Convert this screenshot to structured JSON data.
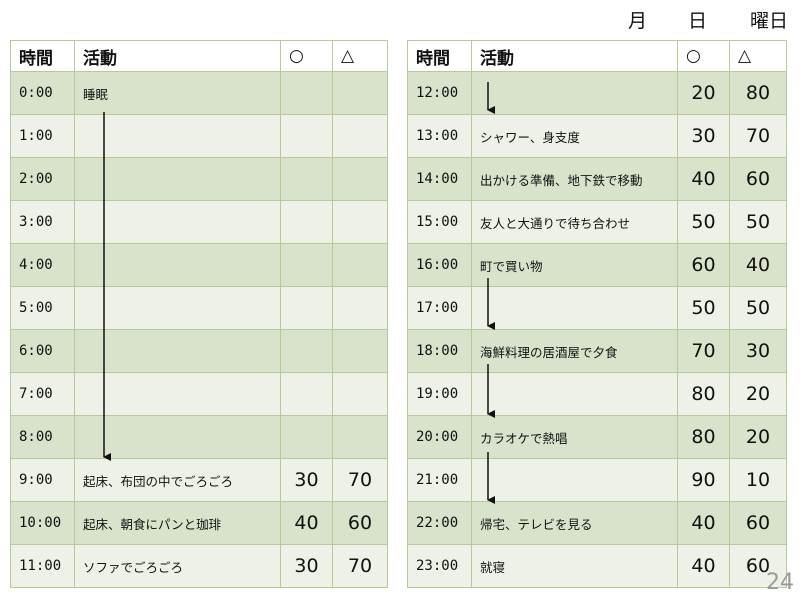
{
  "header": {
    "month": "月",
    "day": "日",
    "weekday": "曜日"
  },
  "columns": {
    "time": "時間",
    "activity": "活動",
    "circle": "○",
    "triangle": "△"
  },
  "left_rows": [
    {
      "time": "0:00",
      "activity": "睡眠",
      "circle": "",
      "triangle": ""
    },
    {
      "time": "1:00",
      "activity": "",
      "circle": "",
      "triangle": ""
    },
    {
      "time": "2:00",
      "activity": "",
      "circle": "",
      "triangle": ""
    },
    {
      "time": "3:00",
      "activity": "",
      "circle": "",
      "triangle": ""
    },
    {
      "time": "4:00",
      "activity": "",
      "circle": "",
      "triangle": ""
    },
    {
      "time": "5:00",
      "activity": "",
      "circle": "",
      "triangle": ""
    },
    {
      "time": "6:00",
      "activity": "",
      "circle": "",
      "triangle": ""
    },
    {
      "time": "7:00",
      "activity": "",
      "circle": "",
      "triangle": ""
    },
    {
      "time": "8:00",
      "activity": "",
      "circle": "",
      "triangle": ""
    },
    {
      "time": "9:00",
      "activity": "起床、布団の中でごろごろ",
      "circle": "30",
      "triangle": "70"
    },
    {
      "time": "10:00",
      "activity": "起床、朝食にパンと珈琲",
      "circle": "40",
      "triangle": "60"
    },
    {
      "time": "11:00",
      "activity": "ソファでごろごろ",
      "circle": "30",
      "triangle": "70"
    }
  ],
  "right_rows": [
    {
      "time": "12:00",
      "activity": "",
      "circle": "20",
      "triangle": "80"
    },
    {
      "time": "13:00",
      "activity": "シャワー、身支度",
      "circle": "30",
      "triangle": "70"
    },
    {
      "time": "14:00",
      "activity": "出かける準備、地下鉄で移動",
      "circle": "40",
      "triangle": "60"
    },
    {
      "time": "15:00",
      "activity": "友人と大通りで待ち合わせ",
      "circle": "50",
      "triangle": "50"
    },
    {
      "time": "16:00",
      "activity": "町で買い物",
      "circle": "60",
      "triangle": "40"
    },
    {
      "time": "17:00",
      "activity": "",
      "circle": "50",
      "triangle": "50"
    },
    {
      "time": "18:00",
      "activity": "海鮮料理の居酒屋で夕食",
      "circle": "70",
      "triangle": "30"
    },
    {
      "time": "19:00",
      "activity": "",
      "circle": "80",
      "triangle": "20"
    },
    {
      "time": "20:00",
      "activity": "カラオケで熱唱",
      "circle": "80",
      "triangle": "20"
    },
    {
      "time": "21:00",
      "activity": "",
      "circle": "90",
      "triangle": "10"
    },
    {
      "time": "22:00",
      "activity": "帰宅、テレビを見る",
      "circle": "40",
      "triangle": "60"
    },
    {
      "time": "23:00",
      "activity": "就寝",
      "circle": "40",
      "triangle": "60"
    }
  ],
  "page_number": "24",
  "colors": {
    "row_dark": "#d9e3cc",
    "row_light": "#edf1e8",
    "border": "#b5c999"
  }
}
